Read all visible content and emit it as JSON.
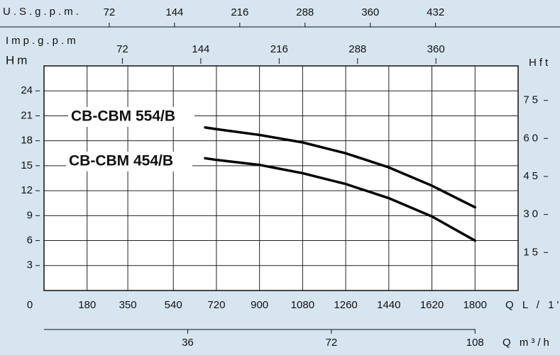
{
  "chart_data": {
    "type": "line",
    "x_label": "Q L / 1'",
    "xlim": [
      0,
      1980
    ],
    "xticks": [
      0,
      180,
      350,
      540,
      720,
      900,
      1080,
      1260,
      1440,
      1620,
      1800
    ],
    "y_label": "Hm",
    "ylim": [
      0,
      27
    ],
    "yticks": [
      0,
      3,
      6,
      9,
      12,
      15,
      18,
      21,
      24
    ],
    "y2_label": "Hft",
    "y2lim": [
      0,
      88.6
    ],
    "y2ticks": [
      15,
      30,
      45,
      60,
      75
    ],
    "top_axis": {
      "label": "U.S.g.p.m.",
      "xlim": [
        0,
        523.1
      ],
      "xticks": [
        72,
        144,
        216,
        288,
        360,
        432
      ]
    },
    "top2_axis": {
      "label": "Imp.g.p.m",
      "xlim": [
        0,
        435.5
      ],
      "xticks": [
        72,
        144,
        216,
        288,
        360
      ]
    },
    "bottom2_axis": {
      "label": "Q m³/h",
      "xlim": [
        0,
        118.8
      ],
      "xticks": [
        36,
        72,
        108
      ]
    },
    "grid": true,
    "series": [
      {
        "name": "CB-CBM 554/B",
        "color": "#000000",
        "x": [
          673,
          720,
          900,
          1080,
          1260,
          1440,
          1620,
          1800
        ],
        "values": [
          19.6,
          19.4,
          18.7,
          17.8,
          16.5,
          14.8,
          12.6,
          10.0
        ]
      },
      {
        "name": "CB-CBM 454/B",
        "color": "#000000",
        "x": [
          673,
          720,
          900,
          1080,
          1260,
          1440,
          1620,
          1800
        ],
        "values": [
          15.9,
          15.7,
          15.1,
          14.1,
          12.8,
          11.1,
          8.9,
          6.0
        ]
      }
    ]
  }
}
